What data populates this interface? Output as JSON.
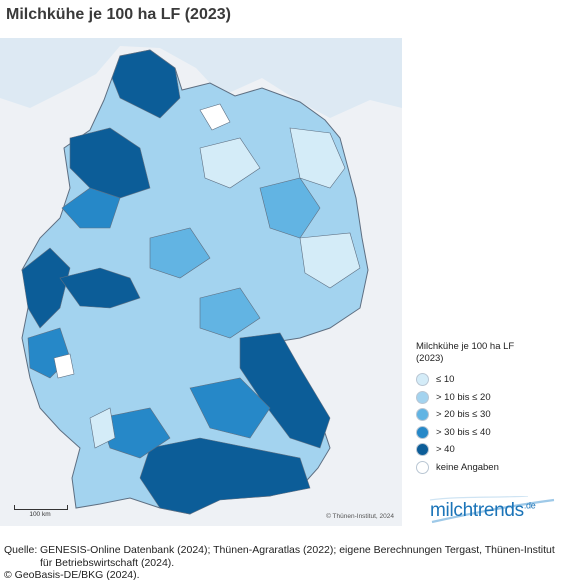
{
  "title": "Milchkühe je 100 ha LF (2023)",
  "legend": {
    "title_line1": "Milchkühe je 100 ha LF",
    "title_line2": "(2023)",
    "items": [
      {
        "label": "≤ 10",
        "color": "#d4ecf8"
      },
      {
        "label": "> 10 bis ≤ 20",
        "color": "#a3d3ef"
      },
      {
        "label": "> 20 bis ≤ 30",
        "color": "#62b4e3"
      },
      {
        "label": "> 30 bis ≤ 40",
        "color": "#2688c8"
      },
      {
        "label": "> 40",
        "color": "#0c5d98"
      },
      {
        "label": "keine Angaben",
        "color": "#ffffff"
      }
    ]
  },
  "map": {
    "copyright": "© Thünen-Institut, 2024",
    "scale_label": "100 km",
    "region_colors": {
      "sea": "#dde9f3",
      "foreign": "#eef1f5"
    }
  },
  "logo": {
    "text": "milchtrends",
    "sup": ".de"
  },
  "source": {
    "label": "Quelle:",
    "text": "GENESIS-Online Datenbank (2024); Thünen-Agraratlas (2022); eigene Berechnungen Tergast, Thünen-Institut für Betriebswirtschaft (2024).",
    "copyright": "© GeoBasis-DE/BKG (2024)."
  }
}
